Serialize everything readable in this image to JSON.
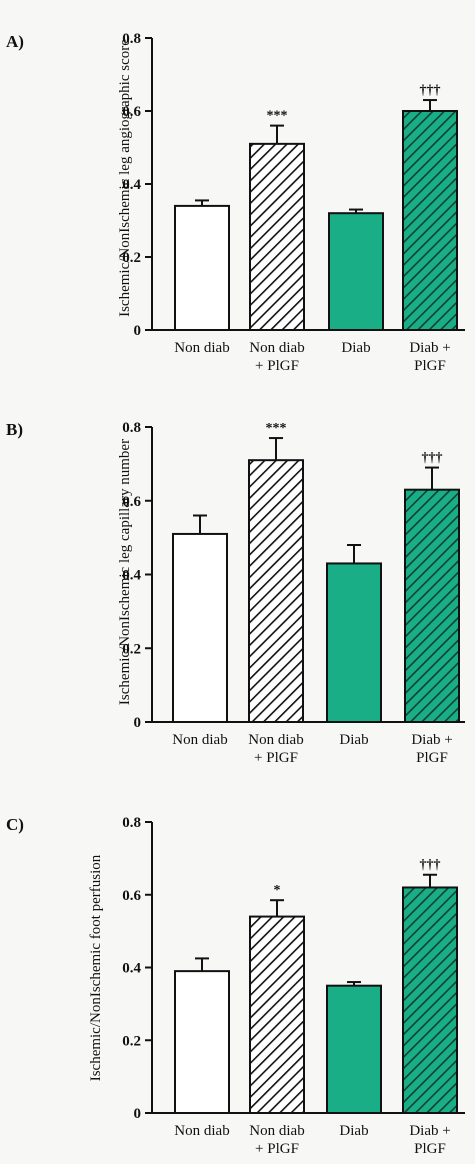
{
  "colors": {
    "white_bar": "#ffffff",
    "hatched_bar": "#ffffff",
    "diab_green": "#1aae86",
    "diab_plgf_green": "#1aae86",
    "hatch_stroke": "#111111",
    "axis": "#111111"
  },
  "chart_data": [
    {
      "type": "bar",
      "panel_label": "A)",
      "ylabel": "Ischemic/NonIschemic leg angiographic score",
      "ylim": [
        0,
        0.8
      ],
      "yticks": [
        "0",
        "0.2",
        "0.4",
        "0.6",
        "0.8"
      ],
      "categories": [
        [
          "Non diab"
        ],
        [
          "Non diab",
          "+ PlGF"
        ],
        [
          "Diab"
        ],
        [
          "Diab +",
          "PlGF"
        ]
      ],
      "values": [
        0.34,
        0.51,
        0.32,
        0.6
      ],
      "errors": [
        0.015,
        0.05,
        0.01,
        0.03
      ],
      "significance": [
        "",
        "***",
        "",
        "†††"
      ],
      "fills": [
        "white",
        "hatch",
        "green",
        "green-hatch"
      ]
    },
    {
      "type": "bar",
      "panel_label": "B)",
      "ylabel": "Ischemic/NonIschemic leg capillary number",
      "ylim": [
        0,
        0.8
      ],
      "yticks": [
        "0",
        "0.2",
        "0.4",
        "0.6",
        "0.8"
      ],
      "categories": [
        [
          "Non diab"
        ],
        [
          "Non diab",
          "+ PlGF"
        ],
        [
          "Diab"
        ],
        [
          "Diab +",
          "PlGF"
        ]
      ],
      "values": [
        0.51,
        0.71,
        0.43,
        0.63
      ],
      "errors": [
        0.05,
        0.06,
        0.05,
        0.06
      ],
      "significance": [
        "",
        "***",
        "",
        "†††"
      ],
      "fills": [
        "white",
        "hatch",
        "green",
        "green-hatch"
      ]
    },
    {
      "type": "bar",
      "panel_label": "C)",
      "ylabel": "Ischemic/NonIschemic foot  perfusion",
      "ylim": [
        0,
        0.8
      ],
      "yticks": [
        "0",
        "0.2",
        "0.4",
        "0.6",
        "0.8"
      ],
      "categories": [
        [
          "Non diab"
        ],
        [
          "Non diab",
          "+ PlGF"
        ],
        [
          "Diab"
        ],
        [
          "Diab +",
          "PlGF"
        ]
      ],
      "values": [
        0.39,
        0.54,
        0.35,
        0.62
      ],
      "errors": [
        0.035,
        0.045,
        0.01,
        0.035
      ],
      "significance": [
        "",
        "*",
        "",
        "†††"
      ],
      "fills": [
        "white",
        "hatch",
        "green",
        "green-hatch"
      ]
    }
  ]
}
